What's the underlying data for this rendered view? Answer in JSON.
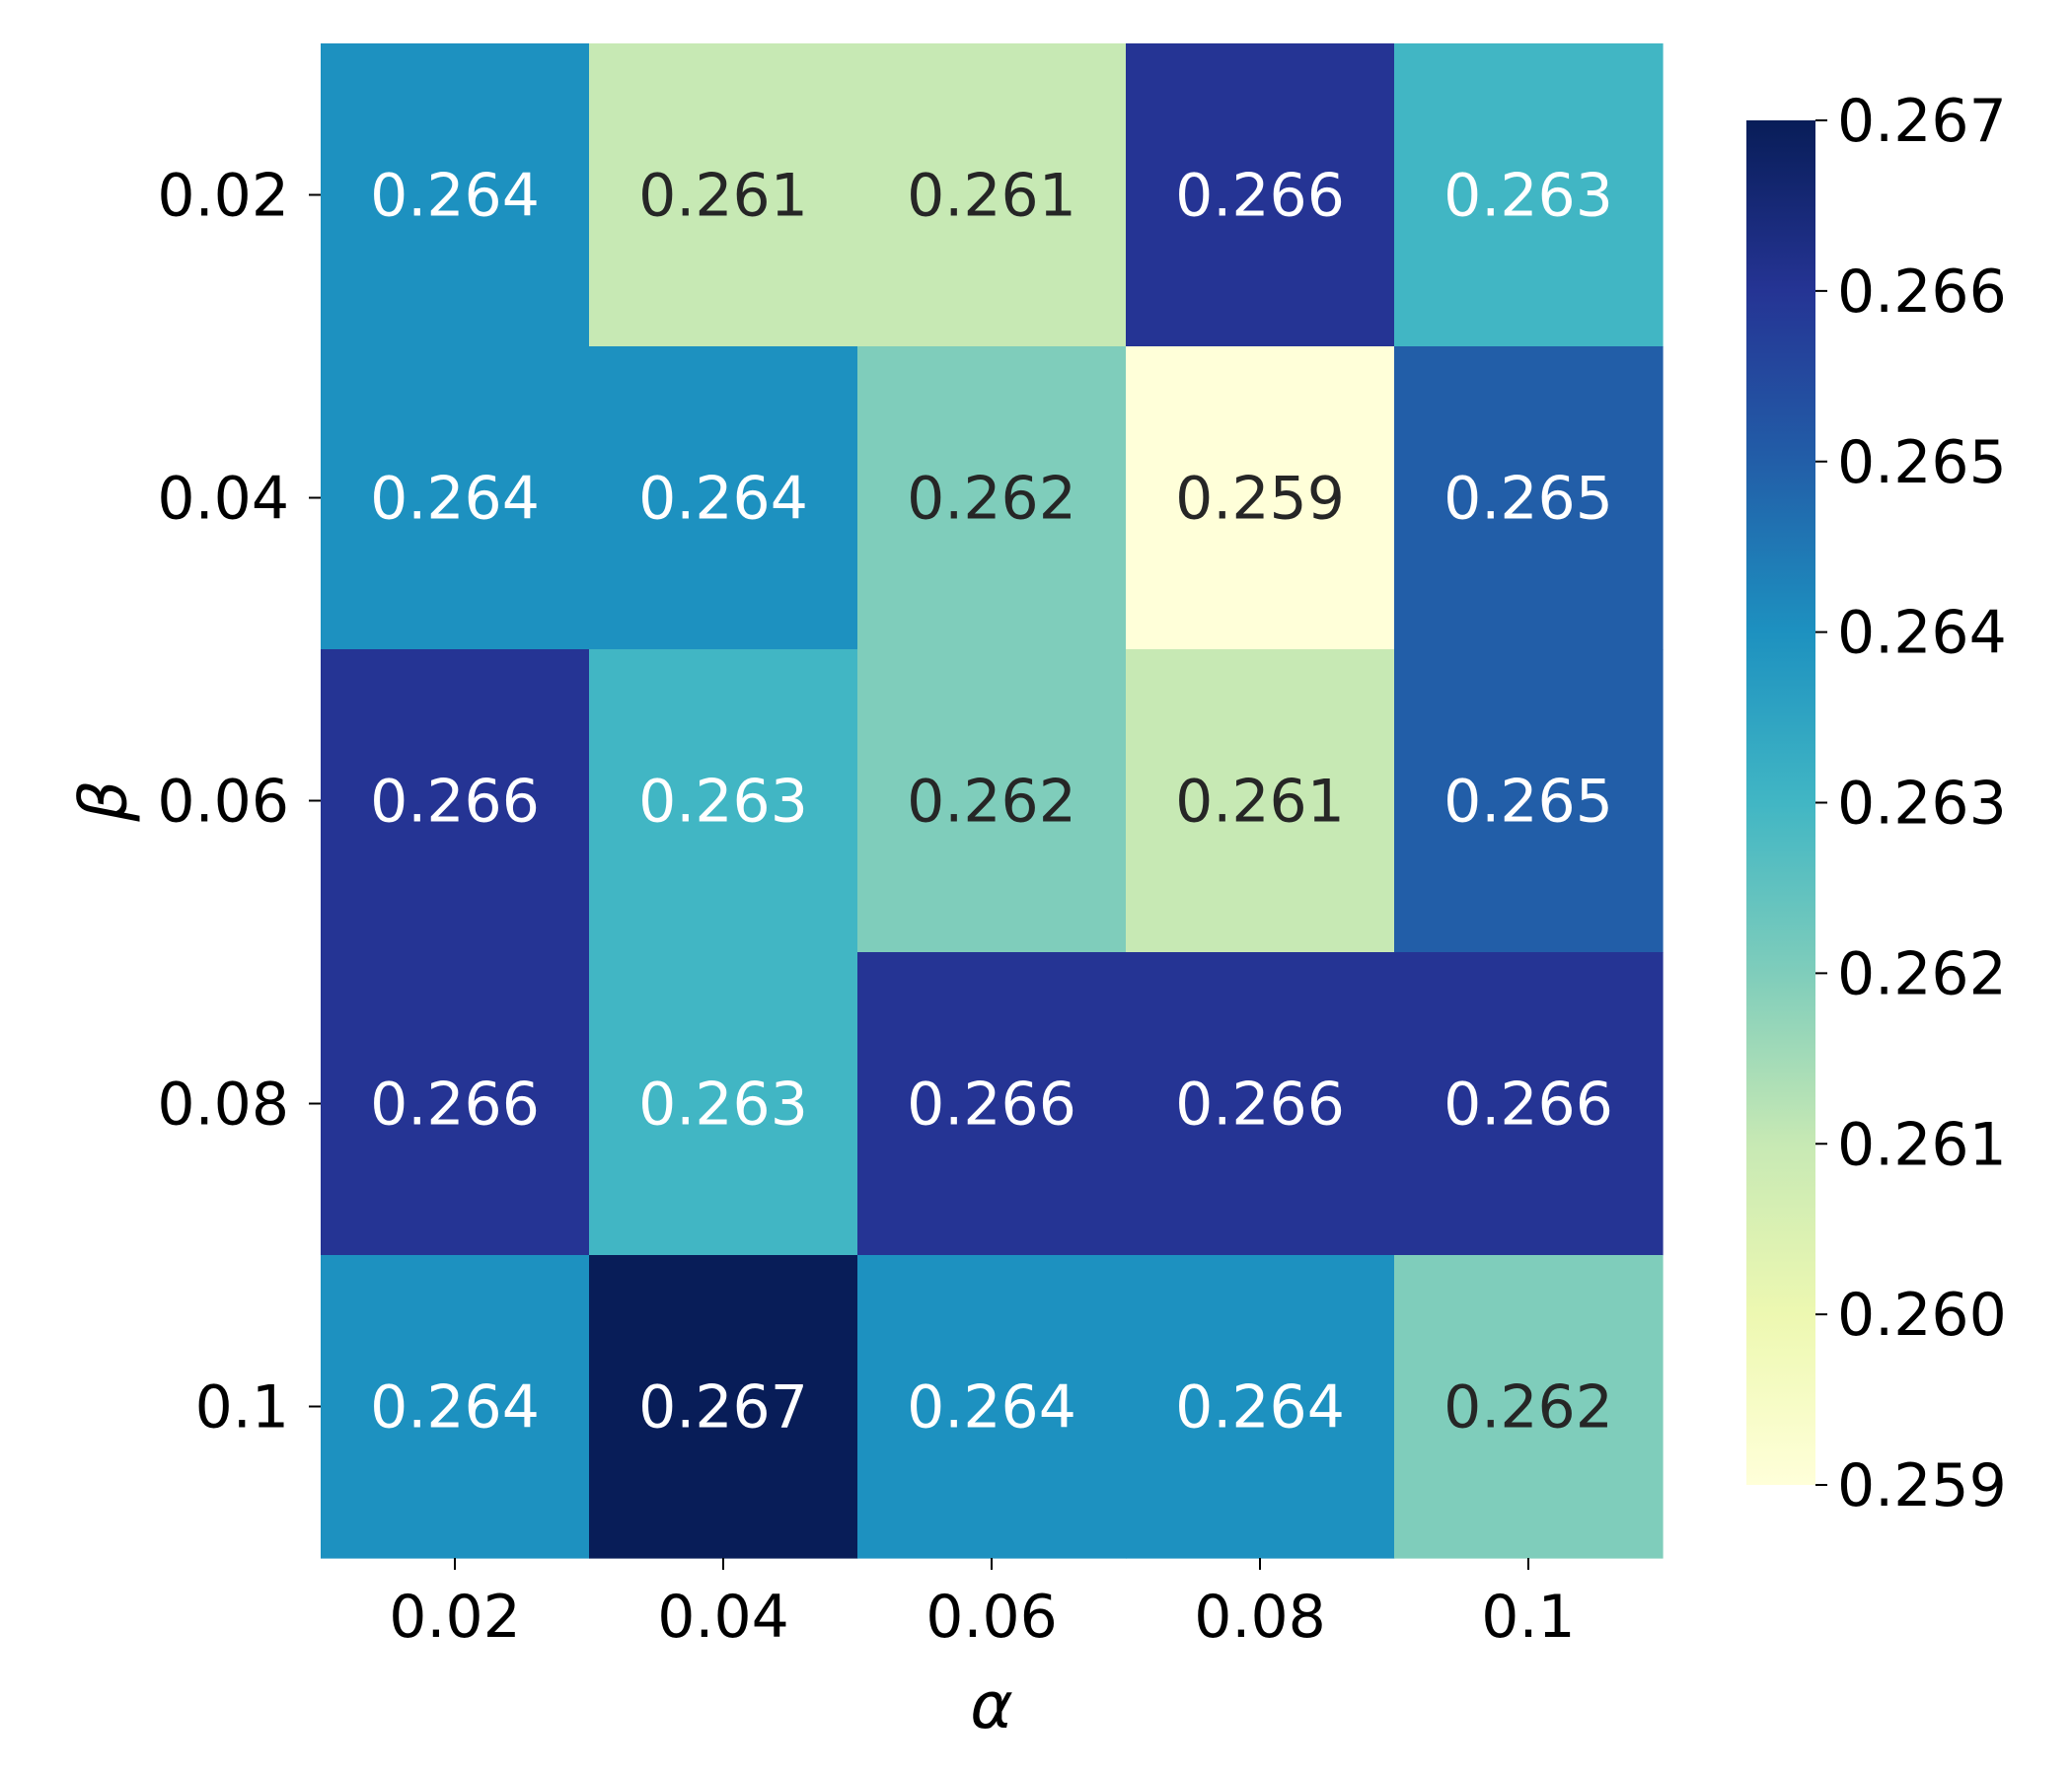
{
  "chart_data": {
    "type": "heatmap",
    "xlabel": "α",
    "ylabel": "β",
    "x_categories": [
      "0.02",
      "0.04",
      "0.06",
      "0.08",
      "0.1"
    ],
    "y_categories": [
      "0.02",
      "0.04",
      "0.06",
      "0.08",
      "0.1"
    ],
    "values": [
      [
        0.264,
        0.261,
        0.261,
        0.266,
        0.263
      ],
      [
        0.264,
        0.264,
        0.262,
        0.259,
        0.265
      ],
      [
        0.266,
        0.263,
        0.262,
        0.261,
        0.265
      ],
      [
        0.266,
        0.263,
        0.266,
        0.266,
        0.266
      ],
      [
        0.264,
        0.267,
        0.264,
        0.264,
        0.262
      ]
    ],
    "cell_labels": [
      [
        "0.264",
        "0.261",
        "0.261",
        "0.266",
        "0.263"
      ],
      [
        "0.264",
        "0.264",
        "0.262",
        "0.259",
        "0.265"
      ],
      [
        "0.266",
        "0.263",
        "0.262",
        "0.261",
        "0.265"
      ],
      [
        "0.266",
        "0.263",
        "0.266",
        "0.266",
        "0.266"
      ],
      [
        "0.264",
        "0.267",
        "0.264",
        "0.264",
        "0.262"
      ]
    ],
    "colorbar": {
      "range": [
        0.259,
        0.267
      ],
      "ticks": [
        "0.267",
        "0.266",
        "0.265",
        "0.264",
        "0.263",
        "0.262",
        "0.261",
        "0.260",
        "0.259"
      ],
      "colormap": "YlGnBu",
      "colors": [
        "#ffffd9",
        "#edf8b1",
        "#c7e9b4",
        "#7fcdbb",
        "#41b6c4",
        "#1d91c0",
        "#225ea8",
        "#253494",
        "#081d58"
      ]
    },
    "label_colors": {
      "light": "#ffffff",
      "dark": "#262626"
    },
    "grid": false,
    "legend": "colorbar-right"
  }
}
